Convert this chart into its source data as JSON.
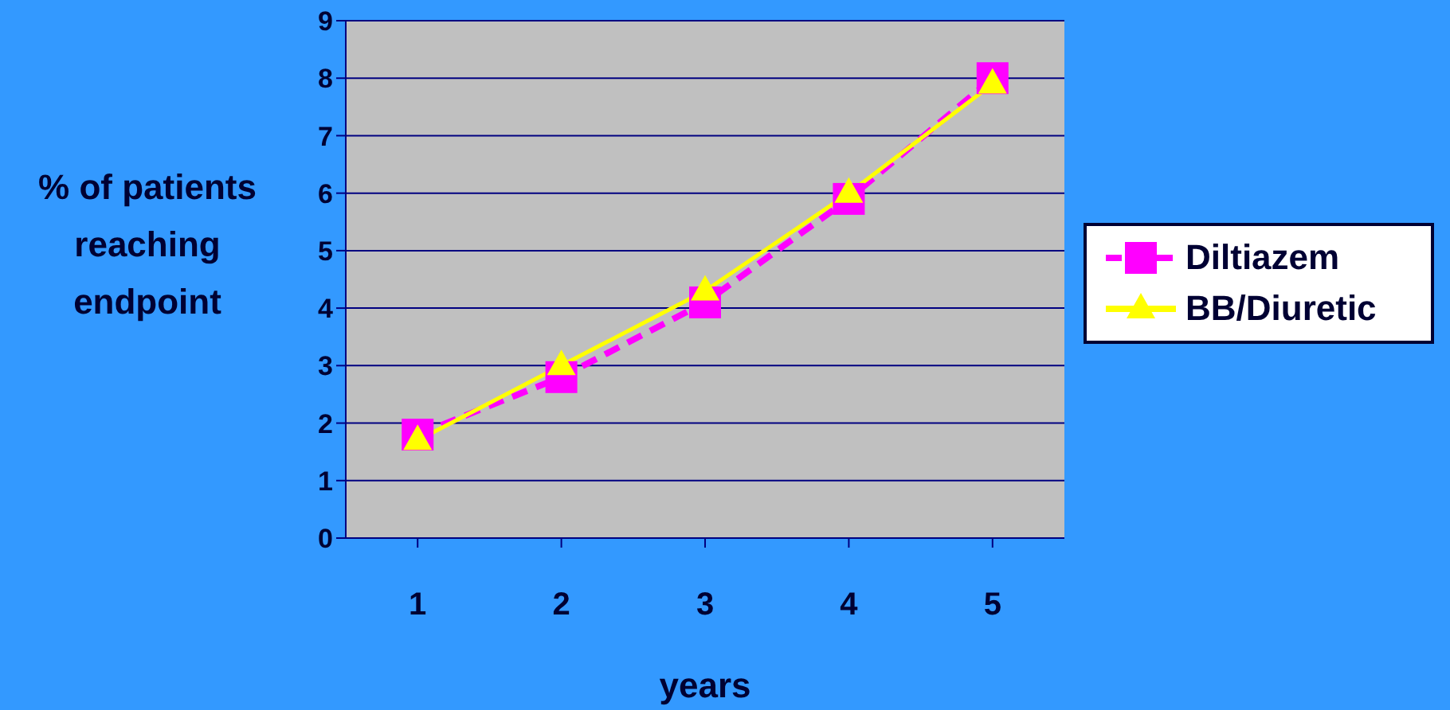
{
  "chart_data": {
    "type": "line",
    "xlabel": "years",
    "ylabel": "% of patients reaching endpoint",
    "categories": [
      "1",
      "2",
      "3",
      "4",
      "5"
    ],
    "series": [
      {
        "name": "Diltiazem",
        "color": "#ff00ff",
        "values": [
          1.8,
          2.8,
          4.1,
          5.9,
          8.0
        ],
        "marker": "square",
        "line_style": "dashed"
      },
      {
        "name": "BB/Diuretic",
        "color": "#ffff00",
        "values": [
          1.7,
          3.0,
          4.3,
          6.0,
          7.9
        ],
        "marker": "triangle",
        "line_style": "solid"
      }
    ],
    "ylim": [
      0,
      9
    ],
    "yticks": [
      0,
      1,
      2,
      3,
      4,
      5,
      6,
      7,
      8,
      9
    ],
    "grid": "y",
    "legend": "right"
  }
}
